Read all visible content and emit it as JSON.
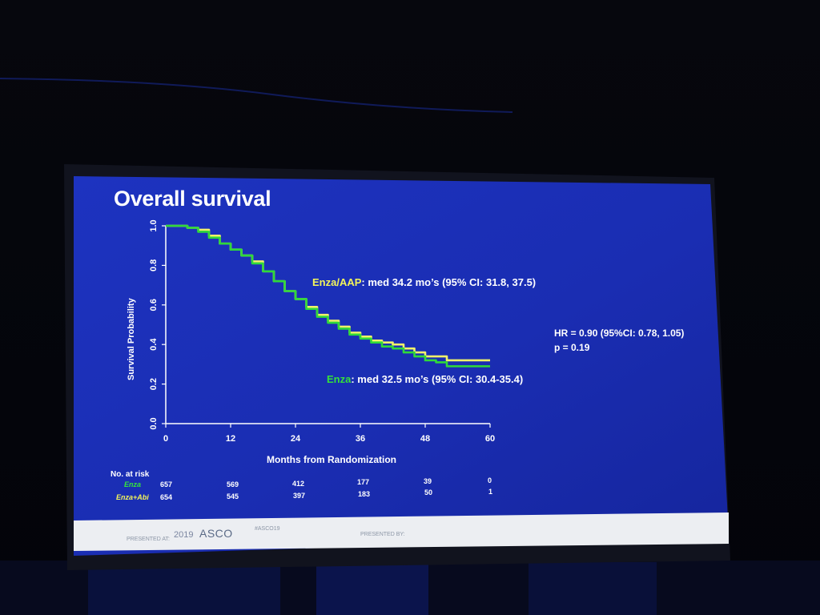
{
  "slide": {
    "title": "Overall survival",
    "annotation_enza_aap": {
      "arm": "Enza/AAP",
      "text": ": med 34.2 mo’s (95% CI: 31.8, 37.5)"
    },
    "annotation_enza": {
      "arm": "Enza",
      "text": ": med 32.5 mo’s (95% CI: 30.4-35.4)"
    },
    "hr_line": "HR = 0.90 (95%CI: 0.78, 1.05)",
    "p_line": "p = 0.19",
    "footer": {
      "year": "2019",
      "society": "ASCO",
      "left_small": "PRESENTED AT:",
      "mid_small": "#ASCO19",
      "right_small": "PRESENTED BY:"
    }
  },
  "colors": {
    "slide_bg": "#1a2fb4",
    "enza": "#2fd93a",
    "enza_aap": "#f0f26a",
    "axis": "#ffffff"
  },
  "risk_table": {
    "header": "No. at risk",
    "rows": [
      {
        "label": "Enza",
        "values": [
          "657",
          "569",
          "412",
          "177",
          "39",
          "0"
        ]
      },
      {
        "label": "Enza+Abi",
        "values": [
          "654",
          "545",
          "397",
          "183",
          "50",
          "1"
        ]
      }
    ]
  },
  "chart_data": {
    "type": "line",
    "title": "Overall survival",
    "xlabel": "Months from Randomization",
    "ylabel": "Survival Probability",
    "xlim": [
      0,
      60
    ],
    "ylim": [
      0,
      1
    ],
    "xticks": [
      "0",
      "12",
      "24",
      "36",
      "48",
      "60"
    ],
    "yticks": [
      "0.0",
      "0.2",
      "0.4",
      "0.6",
      "0.8",
      "1.0"
    ],
    "series": [
      {
        "name": "Enza/AAP",
        "color": "#f0f26a",
        "x": [
          0,
          2,
          4,
          6,
          8,
          10,
          12,
          14,
          16,
          18,
          20,
          22,
          24,
          26,
          28,
          30,
          32,
          34,
          36,
          38,
          40,
          42,
          44,
          46,
          48,
          50,
          52,
          54,
          56,
          60
        ],
        "y": [
          1.0,
          1.0,
          0.99,
          0.98,
          0.95,
          0.91,
          0.88,
          0.85,
          0.82,
          0.77,
          0.72,
          0.67,
          0.63,
          0.59,
          0.55,
          0.52,
          0.49,
          0.46,
          0.44,
          0.42,
          0.41,
          0.4,
          0.38,
          0.36,
          0.34,
          0.34,
          0.32,
          0.32,
          0.32,
          0.32
        ]
      },
      {
        "name": "Enza",
        "color": "#2fd93a",
        "x": [
          0,
          2,
          4,
          6,
          8,
          10,
          12,
          14,
          16,
          18,
          20,
          22,
          24,
          26,
          28,
          30,
          32,
          34,
          36,
          38,
          40,
          42,
          44,
          46,
          48,
          50,
          52,
          54,
          56,
          60
        ],
        "y": [
          1.0,
          1.0,
          0.99,
          0.97,
          0.94,
          0.91,
          0.88,
          0.85,
          0.81,
          0.77,
          0.72,
          0.67,
          0.63,
          0.58,
          0.54,
          0.51,
          0.48,
          0.45,
          0.43,
          0.41,
          0.39,
          0.38,
          0.36,
          0.34,
          0.32,
          0.31,
          0.29,
          0.29,
          0.29,
          0.29
        ]
      }
    ]
  }
}
